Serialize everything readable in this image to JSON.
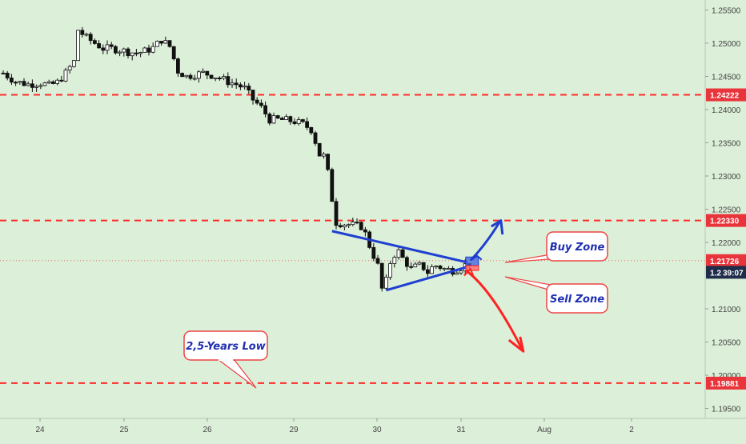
{
  "colors": {
    "background": "#dcefd8",
    "candle_up": "#ffffff",
    "candle_down": "#111111",
    "level_line": "#ff2b2b",
    "label_red": "#e8343a",
    "label_dark": "#1f2d4a",
    "triangle": "#1e3fd0",
    "buy_arrow": "#1e3fd0",
    "sell_arrow": "#ff2222",
    "callout_text": "#1f2fb0"
  },
  "chart_data": {
    "type": "candlestick",
    "x_tick_labels": [
      "24",
      "25",
      "26",
      "29",
      "30",
      "31",
      "Aug",
      "2"
    ],
    "y_tick_labels": [
      "1.25500",
      "1.25000",
      "1.24500",
      "1.24000",
      "1.23500",
      "1.23000",
      "1.22500",
      "1.22000",
      "1.21000",
      "1.20500",
      "1.20000",
      "1.19500"
    ],
    "ylim": [
      1.1935,
      1.2565
    ],
    "price_axis_labels": [
      {
        "text": "1.24222",
        "value": 1.24222,
        "style": "red"
      },
      {
        "text": "1.22330",
        "value": 1.2233,
        "style": "red"
      },
      {
        "text": "1.21726",
        "value": 1.21726,
        "style": "red"
      },
      {
        "text": "1.2",
        "value": 1.2155,
        "style": "dark",
        "extra": "39:07"
      },
      {
        "text": "1.19881",
        "value": 1.19881,
        "style": "red"
      }
    ],
    "levels": [
      {
        "value": 1.24222
      },
      {
        "value": 1.2233
      },
      {
        "value": 1.19881
      }
    ],
    "current_price": 1.21726,
    "annotations": [
      {
        "text": "Buy Zone",
        "type": "callout"
      },
      {
        "text": "Sell Zone",
        "type": "callout"
      },
      {
        "text": "2,5-Years Low",
        "type": "callout"
      }
    ],
    "close_path": [
      [
        0,
        1.2455
      ],
      [
        3,
        1.2442
      ],
      [
        6,
        1.2438
      ],
      [
        9,
        1.244
      ],
      [
        11,
        1.2436
      ],
      [
        13,
        1.2441
      ],
      [
        15,
        1.2455
      ],
      [
        17,
        1.2472
      ],
      [
        18,
        1.252
      ],
      [
        20,
        1.2508
      ],
      [
        22,
        1.25
      ],
      [
        24,
        1.2492
      ],
      [
        26,
        1.2492
      ],
      [
        28,
        1.249
      ],
      [
        30,
        1.2487
      ],
      [
        32,
        1.2485
      ],
      [
        34,
        1.2488
      ],
      [
        36,
        1.2493
      ],
      [
        38,
        1.2505
      ],
      [
        40,
        1.2495
      ],
      [
        42,
        1.2458
      ],
      [
        44,
        1.245
      ],
      [
        46,
        1.2453
      ],
      [
        48,
        1.2455
      ],
      [
        50,
        1.2452
      ],
      [
        52,
        1.2448
      ],
      [
        54,
        1.2442
      ],
      [
        56,
        1.2438
      ],
      [
        58,
        1.2432
      ],
      [
        60,
        1.2415
      ],
      [
        62,
        1.2403
      ],
      [
        64,
        1.2385
      ],
      [
        66,
        1.2385
      ],
      [
        68,
        1.2384
      ],
      [
        70,
        1.2382
      ],
      [
        72,
        1.2378
      ],
      [
        74,
        1.237
      ],
      [
        75,
        1.2352
      ],
      [
        76,
        1.2332
      ],
      [
        77,
        1.233
      ],
      [
        78,
        1.2305
      ],
      [
        79,
        1.2265
      ],
      [
        80,
        1.223
      ],
      [
        82,
        1.2228
      ],
      [
        84,
        1.2226
      ],
      [
        86,
        1.2224
      ],
      [
        87,
        1.2213
      ],
      [
        88,
        1.2195
      ],
      [
        89,
        1.218
      ],
      [
        90,
        1.2165
      ],
      [
        91,
        1.213
      ],
      [
        92,
        1.2142
      ],
      [
        93,
        1.217
      ],
      [
        94,
        1.2182
      ],
      [
        95,
        1.2186
      ],
      [
        96,
        1.2176
      ],
      [
        97,
        1.2168
      ],
      [
        98,
        1.216
      ],
      [
        99,
        1.2163
      ],
      [
        100,
        1.2165
      ],
      [
        101,
        1.2162
      ],
      [
        102,
        1.2155
      ],
      [
        103,
        1.2162
      ],
      [
        104,
        1.2165
      ],
      [
        105,
        1.2163
      ],
      [
        106,
        1.216
      ],
      [
        108,
        1.2158
      ],
      [
        110,
        1.2162
      ],
      [
        111,
        1.2166
      ],
      [
        112,
        1.217
      ]
    ],
    "triangle_upper": [
      [
        79,
        1.2217
      ],
      [
        111.5,
        1.217
      ]
    ],
    "triangle_lower": [
      [
        92,
        1.2128
      ],
      [
        111.5,
        1.2163
      ]
    ]
  }
}
